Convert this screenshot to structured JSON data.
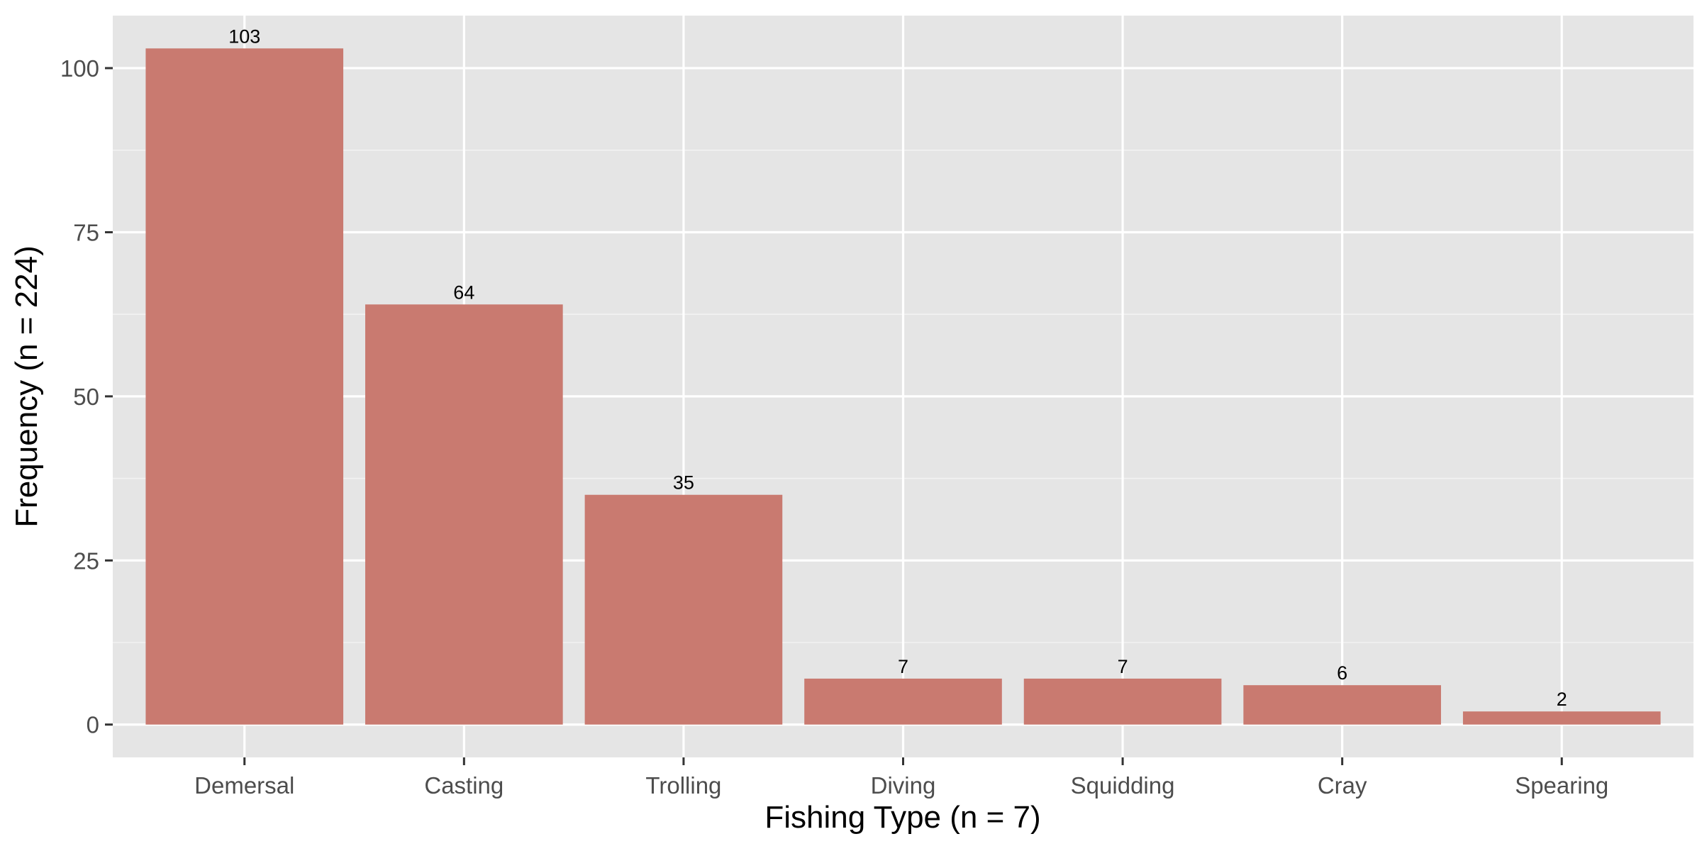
{
  "chart_data": {
    "type": "bar",
    "categories": [
      "Demersal",
      "Casting",
      "Trolling",
      "Diving",
      "Squidding",
      "Cray",
      "Spearing"
    ],
    "values": [
      103,
      64,
      35,
      7,
      7,
      6,
      2
    ],
    "data_labels": [
      "103",
      "64",
      "35",
      "7",
      "7",
      "6",
      "2"
    ],
    "title": "",
    "xlabel": "Fishing Type (n = 7)",
    "ylabel": "Frequency (n = 224)",
    "ylim": [
      -5,
      108
    ],
    "yticks": [
      0,
      25,
      50,
      75,
      100
    ],
    "ytick_labels": [
      "0",
      "25",
      "50",
      "75",
      "100"
    ],
    "grid": true,
    "legend": "none"
  },
  "colors": {
    "bar": "#c97a70",
    "panel": "#e5e5e5",
    "grid_major": "#ffffff",
    "grid_minor": "#f2f2f2",
    "tick": "#333333"
  }
}
